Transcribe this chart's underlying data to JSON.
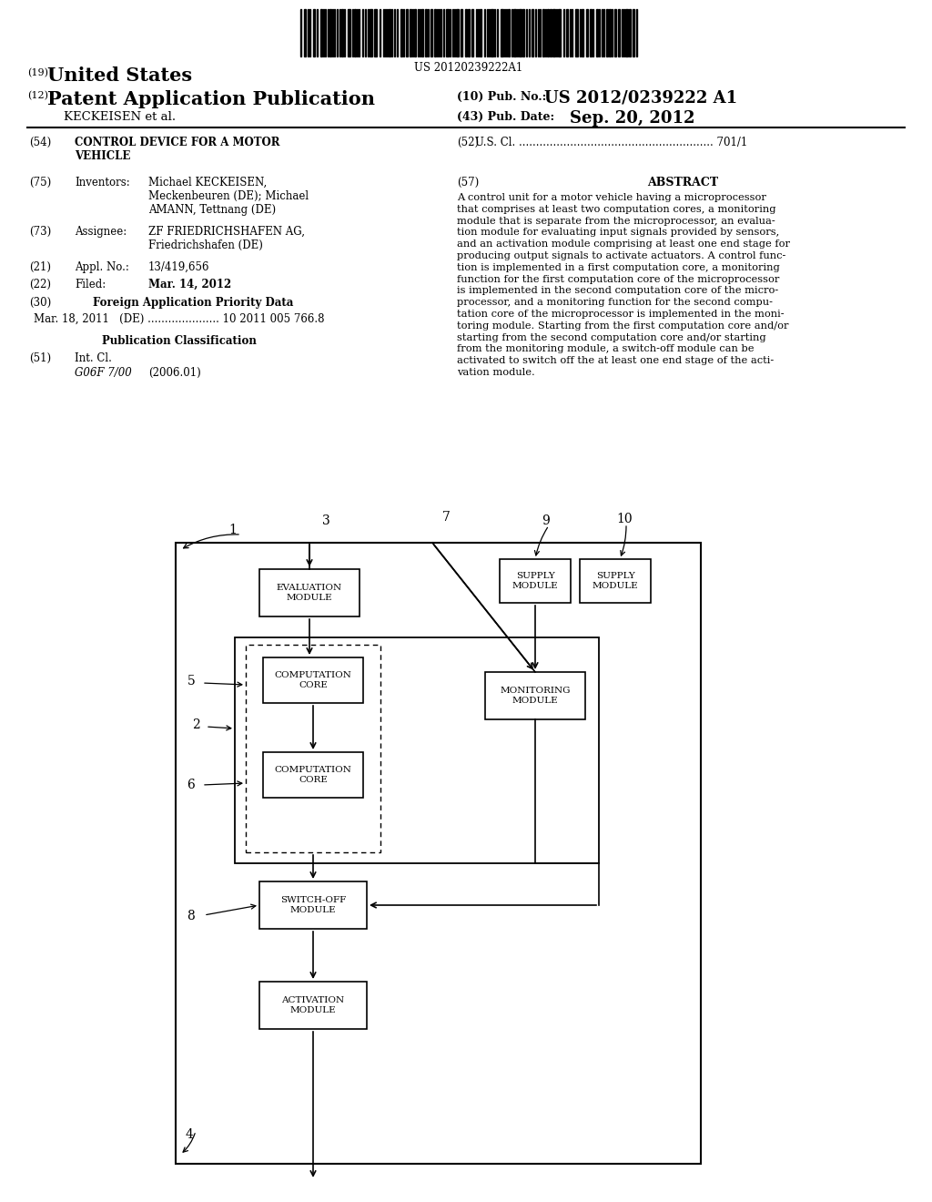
{
  "background_color": "#ffffff",
  "barcode_text": "US 20120239222A1",
  "header_19": "(19)",
  "header_united_states": "United States",
  "header_12": "(12)",
  "header_patent_app": "Patent Application Publication",
  "header_10": "(10) Pub. No.:",
  "header_pub_no": "US 2012/0239222 A1",
  "header_inventors_label": "KECKEISEN et al.",
  "header_43": "(43) Pub. Date:",
  "header_pub_date": "Sep. 20, 2012",
  "field_54_label": "(54)",
  "field_54_title": "CONTROL DEVICE FOR A MOTOR\nVEHICLE",
  "field_52_label": "(52)",
  "field_52_text": "U.S. Cl. ......................................................... 701/1",
  "field_75_label": "(75)",
  "field_75_key": "Inventors:",
  "field_75_value": "Michael KECKEISEN,\nMeckenbeuren (DE); Michael\nAMANN, Tettnang (DE)",
  "field_57_label": "(57)",
  "field_57_title": "ABSTRACT",
  "field_57_text": "A control unit for a motor vehicle having a microprocessor\nthat comprises at least two computation cores, a monitoring\nmodule that is separate from the microprocessor, an evalua-\ntion module for evaluating input signals provided by sensors,\nand an activation module comprising at least one end stage for\nproducing output signals to activate actuators. A control func-\ntion is implemented in a first computation core, a monitoring\nfunction for the first computation core of the microprocessor\nis implemented in the second computation core of the micro-\nprocessor, and a monitoring function for the second compu-\ntation core of the microprocessor is implemented in the moni-\ntoring module. Starting from the first computation core and/or\nstarting from the second computation core and/or starting\nfrom the monitoring module, a switch-off module can be\nactivated to switch off the at least one end stage of the acti-\nvation module.",
  "field_73_label": "(73)",
  "field_73_key": "Assignee:",
  "field_73_value": "ZF FRIEDRICHSHAFEN AG,\nFriedrichshafen (DE)",
  "field_21_label": "(21)",
  "field_21_key": "Appl. No.:",
  "field_21_value": "13/419,656",
  "field_22_label": "(22)",
  "field_22_key": "Filed:",
  "field_22_value": "Mar. 14, 2012",
  "field_30_label": "(30)",
  "field_30_title": "Foreign Application Priority Data",
  "field_30_data": "Mar. 18, 2011   (DE) ..................... 10 2011 005 766.8",
  "pub_class_title": "Publication Classification",
  "field_51_label": "(51)",
  "field_51_key": "Int. Cl.",
  "field_51_value": "G06F 7/00",
  "field_51_year": "(2006.01)",
  "diagram_label_1": "1",
  "diagram_label_2": "2",
  "diagram_label_3": "3",
  "diagram_label_4": "4",
  "diagram_label_5": "5",
  "diagram_label_6": "6",
  "diagram_label_7": "7",
  "diagram_label_8": "8",
  "diagram_label_9": "9",
  "diagram_label_10": "10",
  "box_eval": "EVALUATION\nMODULE",
  "box_supply1": "SUPPLY\nMODULE",
  "box_supply2": "SUPPLY\nMODULE",
  "box_comp1": "COMPUTATION\nCORE",
  "box_comp2": "COMPUTATION\nCORE",
  "box_monitor": "MONITORING\nMODULE",
  "box_switchoff": "SWITCH-OFF\nMODULE",
  "box_activation": "ACTIVATION\nMODULE"
}
